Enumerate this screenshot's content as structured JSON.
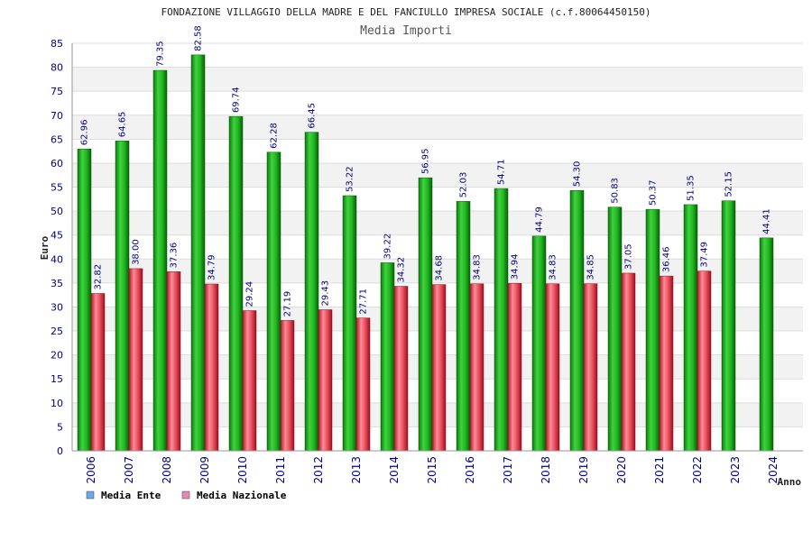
{
  "chart_data": {
    "type": "bar",
    "title": "FONDAZIONE VILLAGGIO DELLA MADRE E DEL FANCIULLO IMPRESA SOCIALE (c.f.80064450150)",
    "subtitle": "Media Importi",
    "xlabel": "Anno",
    "ylabel": "Euro",
    "ylim": [
      0,
      85
    ],
    "yticks": [
      0,
      5,
      10,
      15,
      20,
      25,
      30,
      35,
      40,
      45,
      50,
      55,
      60,
      65,
      70,
      75,
      80,
      85
    ],
    "categories": [
      "2006",
      "2007",
      "2008",
      "2009",
      "2010",
      "2011",
      "2012",
      "2013",
      "2014",
      "2015",
      "2016",
      "2017",
      "2018",
      "2019",
      "2020",
      "2021",
      "2022",
      "2023",
      "2024"
    ],
    "series": [
      {
        "name": "Media Ente",
        "color": "#22aa22",
        "values": [
          62.96,
          64.65,
          79.35,
          82.58,
          69.74,
          62.28,
          66.45,
          53.22,
          39.22,
          56.95,
          52.03,
          54.71,
          44.79,
          54.3,
          50.83,
          50.37,
          51.35,
          52.15,
          44.41
        ],
        "labels": [
          "62.96",
          "64.65",
          "79.35",
          "82.58",
          "69.74",
          "62.28",
          "66.45",
          "53.22",
          "39.22",
          "56.95",
          "52.03",
          "54.71",
          "44.79",
          "54.30",
          "50.83",
          "50.37",
          "51.35",
          "52.15",
          "44.41"
        ]
      },
      {
        "name": "Media Nazionale",
        "color": "#e04050",
        "values": [
          32.82,
          38.0,
          37.36,
          34.79,
          29.24,
          27.19,
          29.43,
          27.71,
          34.32,
          34.68,
          34.83,
          34.94,
          34.83,
          34.85,
          37.05,
          36.46,
          37.49,
          null,
          null
        ],
        "labels": [
          "32.82",
          "38.00",
          "37.36",
          "34.79",
          "29.24",
          "27.19",
          "29.43",
          "27.71",
          "34.32",
          "34.68",
          "34.83",
          "34.94",
          "34.83",
          "34.85",
          "37.05",
          "36.46",
          "37.49",
          "",
          ""
        ]
      }
    ],
    "legend": {
      "placement": "bottom-left",
      "items": [
        {
          "label": "Media Ente",
          "color": "#6aa8e8"
        },
        {
          "label": "Media Nazionale",
          "color": "#e888b0"
        }
      ]
    },
    "grid": true
  }
}
